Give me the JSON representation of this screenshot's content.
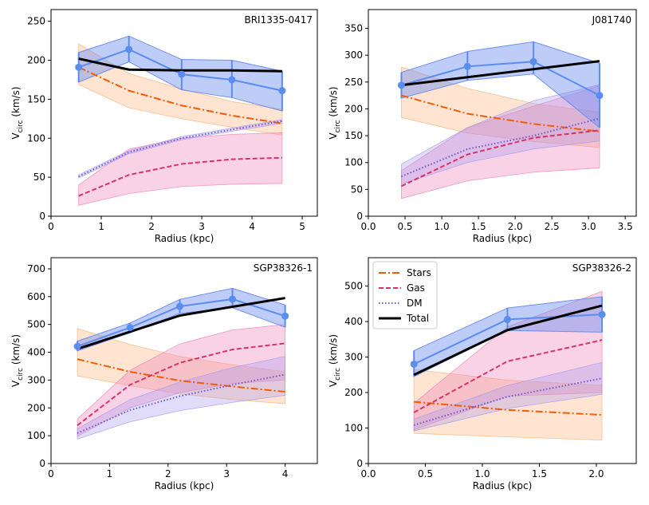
{
  "colors": {
    "stars": "#f25c05",
    "gas": "#d6336c",
    "dm": "#6a5acd",
    "total": "#000000",
    "observed": "#5b8def",
    "stars_band": "#fbb37a",
    "gas_band": "#ee82b4",
    "dm_band": "#a99af0",
    "obs_band": "#6f8ff0"
  },
  "legend": [
    {
      "key": "stars",
      "label": "Stars"
    },
    {
      "key": "gas",
      "label": "Gas"
    },
    {
      "key": "dm",
      "label": "DM"
    },
    {
      "key": "total",
      "label": "Total"
    }
  ],
  "chart_data": [
    {
      "type": "line",
      "title": "BRI1335-0417",
      "xlabel": "Radius (kpc)",
      "ylabel_main": "V",
      "ylabel_sub": "circ",
      "ylabel_unit": " (km/s)",
      "xlim": [
        0,
        5.3
      ],
      "ylim": [
        0,
        265
      ],
      "xticks": [
        0,
        1,
        2,
        3,
        4,
        5
      ],
      "xtick_labels": [
        "0",
        "1",
        "2",
        "3",
        "4",
        "5"
      ],
      "yticks": [
        0,
        50,
        100,
        150,
        200,
        250
      ],
      "ytick_labels": [
        "0",
        "50",
        "100",
        "150",
        "200",
        "250"
      ],
      "x": [
        0.55,
        1.55,
        2.6,
        3.6,
        4.6
      ],
      "observed": {
        "values": [
          191,
          214,
          182,
          175,
          161
        ],
        "lower": [
          172,
          198,
          162,
          152,
          135
        ],
        "upper": [
          210,
          231,
          201,
          200,
          186
        ]
      },
      "stars": {
        "values": [
          191,
          161,
          142,
          129,
          119
        ],
        "lower": [
          169,
          139,
          125,
          114,
          104
        ],
        "upper": [
          221,
          183,
          163,
          147,
          137
        ]
      },
      "gas": {
        "values": [
          26,
          53,
          67,
          73,
          75
        ],
        "lower": [
          14,
          29,
          38,
          41,
          42
        ],
        "upper": [
          40,
          86,
          100,
          105,
          107
        ]
      },
      "dm": {
        "values": [
          51,
          82,
          100,
          111,
          122
        ],
        "lower": [
          49,
          80,
          98,
          109,
          119
        ],
        "upper": [
          53,
          84,
          102,
          113,
          124
        ]
      },
      "total": {
        "x": [
          0.55,
          1.55,
          2.6,
          3.6,
          4.6
        ],
        "values": [
          202,
          188,
          187,
          187,
          186
        ]
      }
    },
    {
      "type": "line",
      "title": "J081740",
      "xlabel": "Radius (kpc)",
      "ylabel_main": "V",
      "ylabel_sub": "circ",
      "ylabel_unit": " (km/s)",
      "xlim": [
        0,
        3.65
      ],
      "ylim": [
        0,
        385
      ],
      "xticks": [
        0,
        0.5,
        1,
        1.5,
        2,
        2.5,
        3,
        3.5
      ],
      "xtick_labels": [
        "0.0",
        "0.5",
        "1.0",
        "1.5",
        "2.0",
        "2.5",
        "3.0",
        "3.5"
      ],
      "yticks": [
        0,
        50,
        100,
        150,
        200,
        250,
        300,
        350
      ],
      "ytick_labels": [
        "0",
        "50",
        "100",
        "150",
        "200",
        "250",
        "300",
        "350"
      ],
      "x": [
        0.45,
        1.35,
        2.25,
        3.15
      ],
      "observed": {
        "values": [
          244,
          279,
          288,
          225
        ],
        "lower": [
          220,
          253,
          265,
          165
        ],
        "upper": [
          268,
          307,
          325,
          285
        ]
      },
      "stars": {
        "values": [
          225,
          191,
          172,
          158
        ],
        "lower": [
          184,
          155,
          139,
          128
        ],
        "upper": [
          278,
          238,
          210,
          194
        ]
      },
      "gas": {
        "values": [
          56,
          115,
          146,
          160
        ],
        "lower": [
          33,
          66,
          82,
          90
        ],
        "upper": [
          85,
          165,
          205,
          243
        ]
      },
      "dm": {
        "values": [
          74,
          125,
          150,
          182
        ],
        "lower": [
          60,
          100,
          125,
          140
        ],
        "upper": [
          97,
          165,
          215,
          245
        ]
      },
      "total": {
        "x": [
          0.45,
          3.15
        ],
        "values": [
          244,
          289
        ]
      }
    },
    {
      "type": "line",
      "title": "SGP38326-1",
      "xlabel": "Radius (kpc)",
      "ylabel_main": "V",
      "ylabel_sub": "circ",
      "ylabel_unit": " (km/s)",
      "xlim": [
        0,
        4.55
      ],
      "ylim": [
        0,
        740
      ],
      "xticks": [
        0,
        1,
        2,
        3,
        4
      ],
      "xtick_labels": [
        "0",
        "1",
        "2",
        "3",
        "4"
      ],
      "yticks": [
        0,
        100,
        200,
        300,
        400,
        500,
        600,
        700
      ],
      "ytick_labels": [
        "0",
        "100",
        "200",
        "300",
        "400",
        "500",
        "600",
        "700"
      ],
      "x": [
        0.45,
        1.35,
        2.2,
        3.1,
        4.0
      ],
      "observed": {
        "values": [
          421,
          489,
          565,
          591,
          530
        ],
        "lower": [
          405,
          470,
          540,
          560,
          490
        ],
        "upper": [
          440,
          505,
          590,
          630,
          570
        ]
      },
      "stars": {
        "values": [
          375,
          330,
          298,
          277,
          258
        ],
        "lower": [
          315,
          280,
          250,
          230,
          215
        ],
        "upper": [
          485,
          428,
          385,
          355,
          330
        ]
      },
      "gas": {
        "values": [
          137,
          283,
          362,
          410,
          432
        ],
        "lower": [
          98,
          200,
          255,
          288,
          300
        ],
        "upper": [
          160,
          335,
          430,
          480,
          500
        ]
      },
      "dm": {
        "values": [
          109,
          192,
          242,
          283,
          320
        ],
        "lower": [
          88,
          150,
          190,
          220,
          245
        ],
        "upper": [
          125,
          230,
          293,
          345,
          385
        ]
      },
      "total": {
        "x": [
          0.45,
          2.2,
          4.0
        ],
        "values": [
          412,
          532,
          595
        ]
      }
    },
    {
      "type": "line",
      "title": "SGP38326-2",
      "xlabel": "Radius (kpc)",
      "ylabel_main": "V",
      "ylabel_sub": "circ",
      "ylabel_unit": " (km/s)",
      "xlim": [
        0,
        2.35
      ],
      "ylim": [
        0,
        580
      ],
      "xticks": [
        0,
        0.5,
        1,
        1.5,
        2
      ],
      "xtick_labels": [
        "0.0",
        "0.5",
        "1.0",
        "1.5",
        "2.0"
      ],
      "yticks": [
        0,
        100,
        200,
        300,
        400,
        500
      ],
      "ytick_labels": [
        "0",
        "100",
        "200",
        "300",
        "400",
        "500"
      ],
      "x": [
        0.4,
        1.22,
        2.05
      ],
      "observed": {
        "values": [
          280,
          406,
          420
        ],
        "lower": [
          245,
          375,
          370
        ],
        "upper": [
          318,
          438,
          470
        ]
      },
      "stars": {
        "values": [
          174,
          151,
          137
        ],
        "lower": [
          85,
          75,
          66
        ],
        "upper": [
          265,
          235,
          220
        ]
      },
      "gas": {
        "values": [
          144,
          288,
          348
        ],
        "lower": [
          95,
          190,
          200
        ],
        "upper": [
          170,
          385,
          485
        ]
      },
      "dm": {
        "values": [
          108,
          188,
          240
        ],
        "lower": [
          92,
          155,
          195
        ],
        "upper": [
          125,
          220,
          285
        ]
      },
      "total": {
        "x": [
          0.4,
          1.22,
          2.05
        ],
        "values": [
          250,
          376,
          445
        ]
      }
    }
  ]
}
